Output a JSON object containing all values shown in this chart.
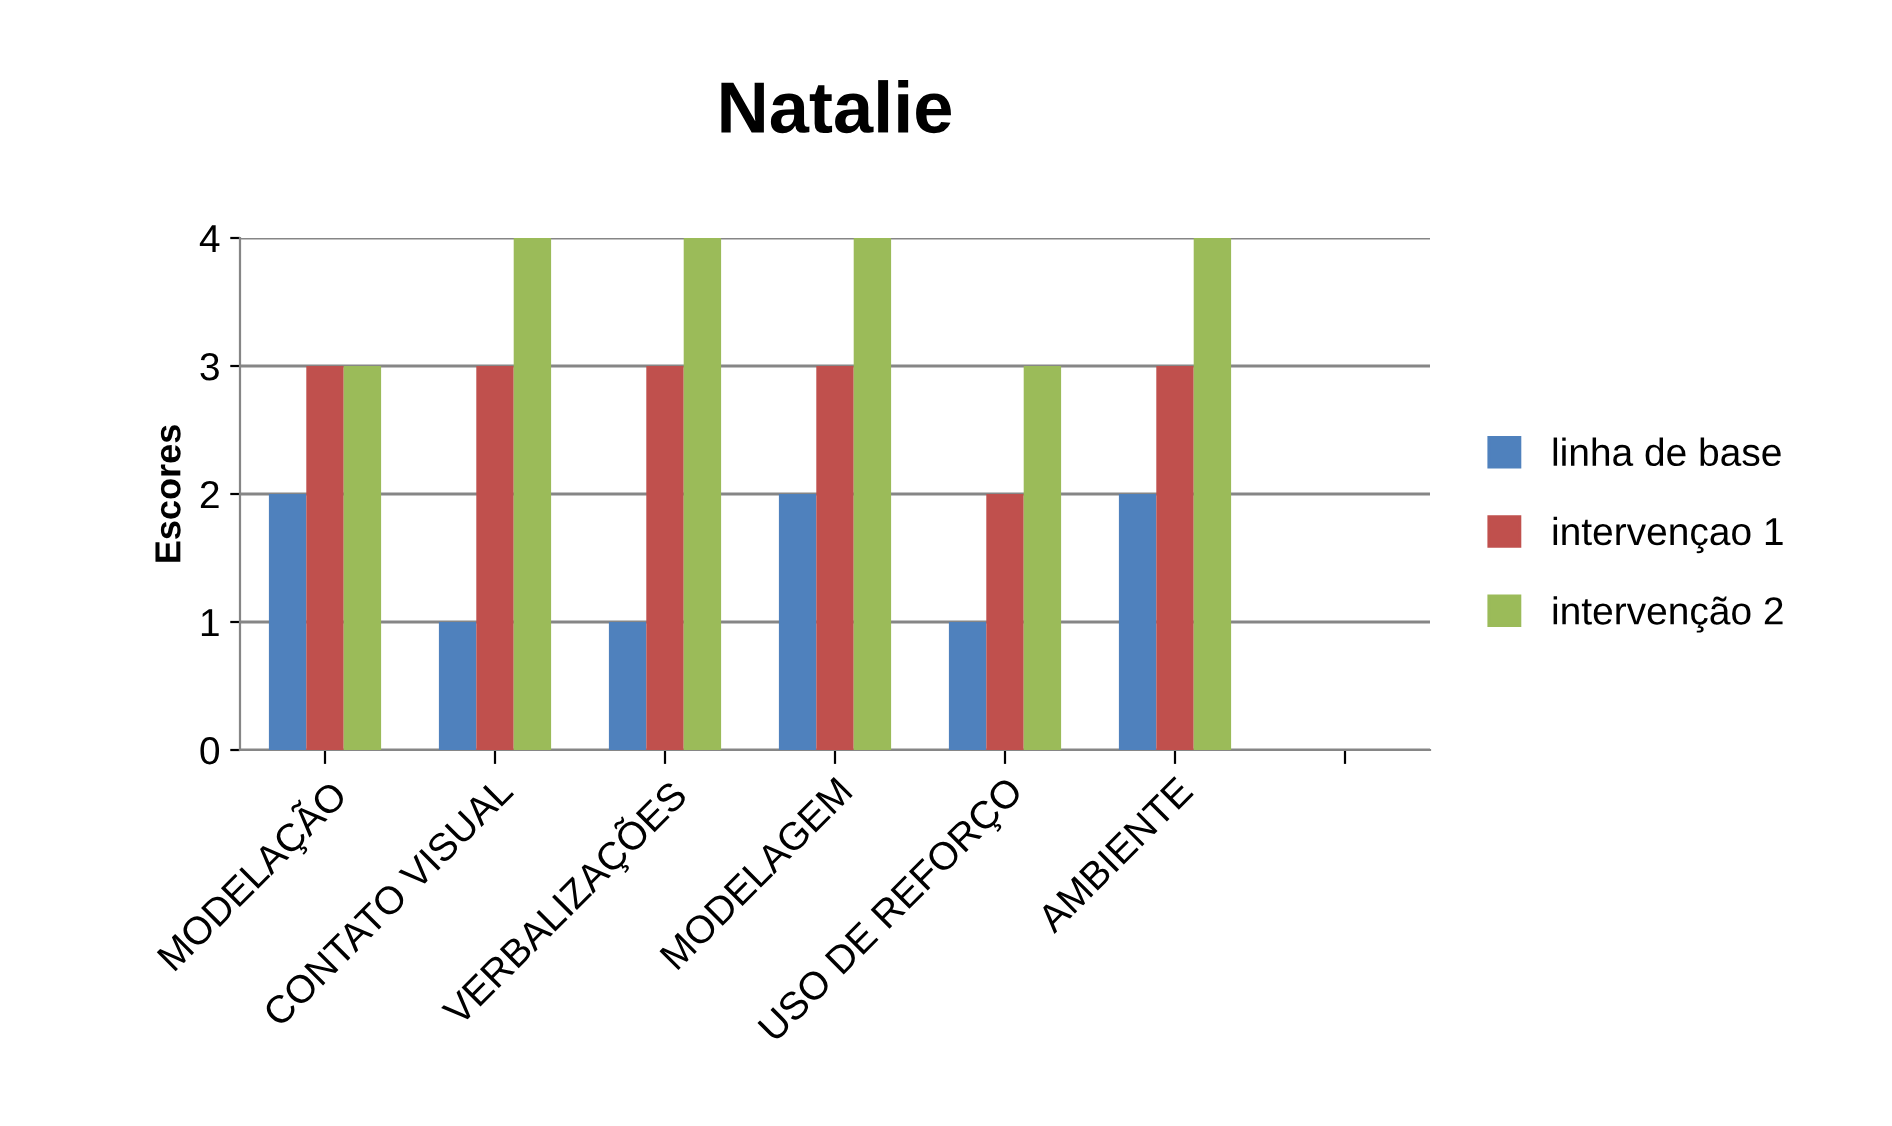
{
  "chart_data": {
    "type": "bar",
    "title": "Natalie",
    "ylabel": "Escores",
    "categories": [
      "MODELAÇÃO",
      "CONTATO VISUAL",
      "VERBALIZAÇÕES",
      "MODELAGEM",
      "USO DE REFORÇO",
      "AMBIENTE",
      null
    ],
    "series": [
      {
        "name": "linha de base",
        "color": "#4f81bd",
        "values": [
          2,
          1,
          1,
          2,
          1,
          2,
          null
        ]
      },
      {
        "name": "intervençao 1",
        "color": "#c0504d",
        "values": [
          3,
          3,
          3,
          3,
          2,
          3,
          null
        ]
      },
      {
        "name": "intervenção 2",
        "color": "#9bbb59",
        "values": [
          3,
          4,
          4,
          4,
          3,
          4,
          null
        ]
      }
    ],
    "ylim": [
      0,
      4
    ],
    "yticks": [
      0,
      1,
      2,
      3,
      4
    ],
    "grid": "y",
    "legend": "right"
  }
}
